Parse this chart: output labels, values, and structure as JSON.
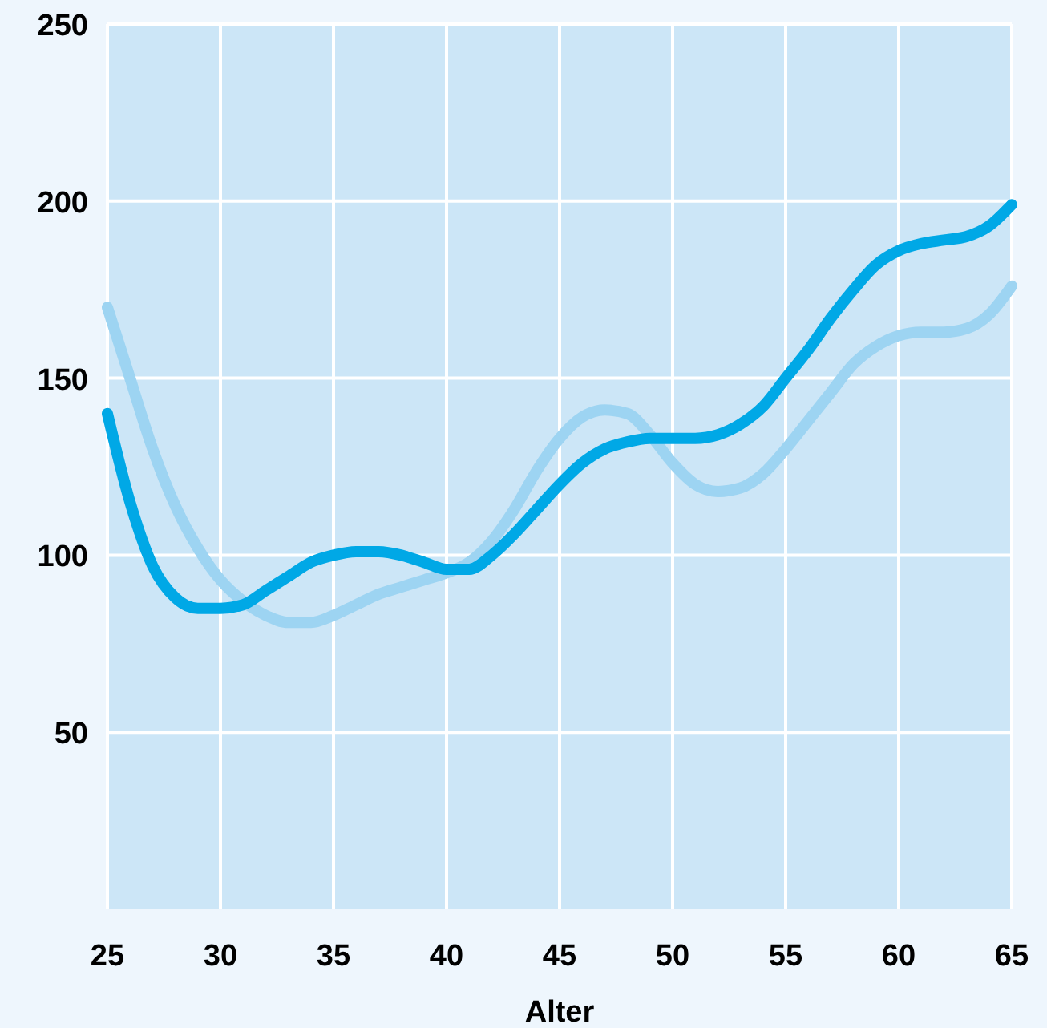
{
  "chart_data": {
    "type": "line",
    "xlabel": "Alter",
    "x": [
      25,
      26,
      27,
      28,
      29,
      30,
      31,
      32,
      33,
      34,
      35,
      36,
      37,
      38,
      39,
      40,
      41,
      42,
      43,
      44,
      45,
      46,
      47,
      48,
      49,
      50,
      51,
      52,
      53,
      54,
      55,
      56,
      57,
      58,
      59,
      60,
      61,
      62,
      63,
      64,
      65
    ],
    "series": [
      {
        "color": "#9dd4f2",
        "values": [
          170,
          150,
          130,
          114,
          102,
          93,
          87,
          83,
          81,
          81,
          83,
          86,
          89,
          91,
          93,
          95,
          98,
          104,
          113,
          124,
          133,
          139,
          141,
          140,
          134,
          126,
          120,
          118,
          119,
          123,
          130,
          138,
          146,
          154,
          159,
          162,
          163,
          163,
          164,
          168,
          176
        ]
      },
      {
        "color": "#00a8e6",
        "values": [
          140,
          115,
          97,
          88,
          85,
          85,
          86,
          90,
          94,
          98,
          100,
          101,
          101,
          100,
          98,
          96,
          96,
          100,
          106,
          113,
          120,
          126,
          130,
          132,
          133,
          133,
          133,
          134,
          137,
          142,
          150,
          158,
          167,
          175,
          182,
          186,
          188,
          189,
          190,
          193,
          199
        ]
      }
    ],
    "xlim": [
      25,
      65
    ],
    "xticks": [
      25,
      30,
      35,
      40,
      45,
      50,
      55,
      60,
      65
    ],
    "ylim": [
      0,
      250
    ],
    "yticks": [
      50,
      100,
      150,
      200,
      250
    ],
    "grid": true,
    "marker": "none",
    "line_style": "solid"
  }
}
